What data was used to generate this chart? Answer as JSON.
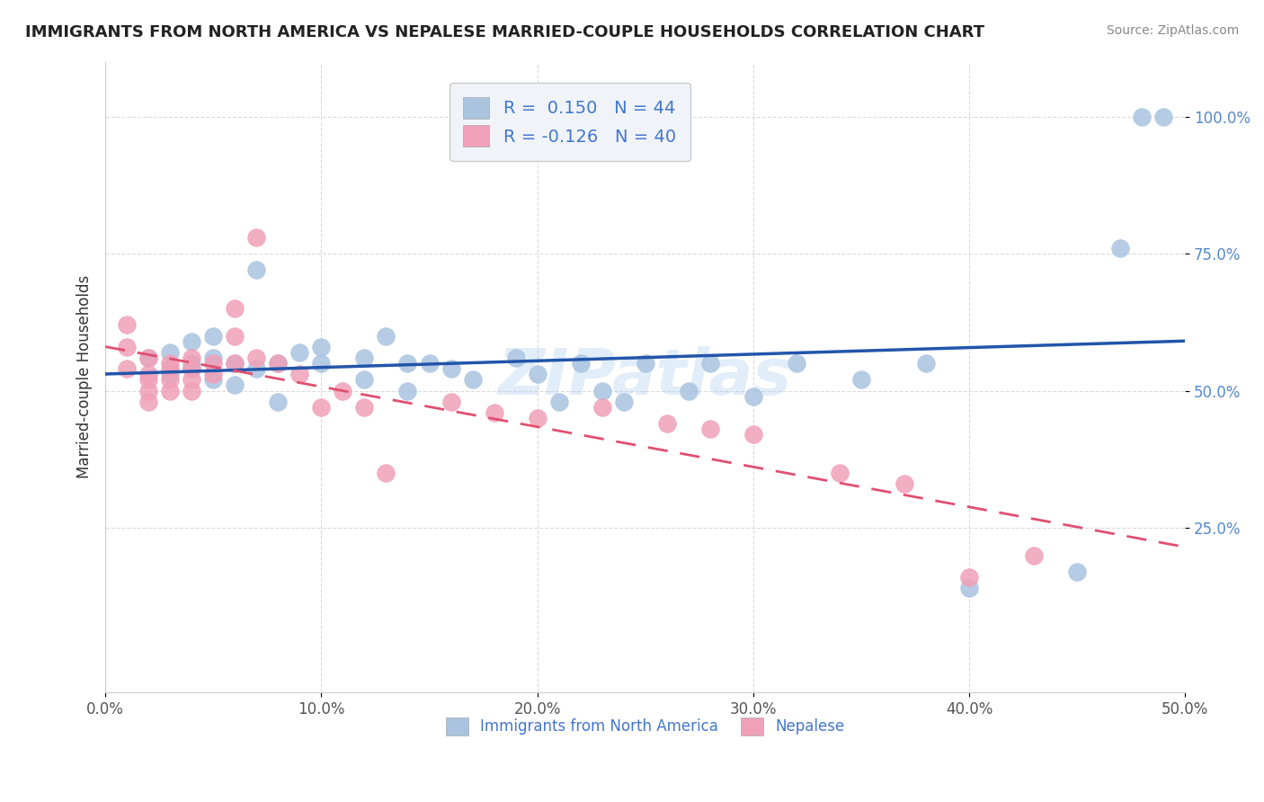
{
  "title": "IMMIGRANTS FROM NORTH AMERICA VS NEPALESE MARRIED-COUPLE HOUSEHOLDS CORRELATION CHART",
  "source": "Source: ZipAtlas.com",
  "ylabel": "Married-couple Households",
  "xlim": [
    0.0,
    0.5
  ],
  "ylim": [
    -0.05,
    1.1
  ],
  "xtick_labels": [
    "0.0%",
    "10.0%",
    "20.0%",
    "30.0%",
    "40.0%",
    "50.0%"
  ],
  "xtick_vals": [
    0.0,
    0.1,
    0.2,
    0.3,
    0.4,
    0.5
  ],
  "ytick_labels": [
    "25.0%",
    "50.0%",
    "75.0%",
    "100.0%"
  ],
  "ytick_vals": [
    0.25,
    0.5,
    0.75,
    1.0
  ],
  "blue_R": 0.15,
  "blue_N": 44,
  "pink_R": -0.126,
  "pink_N": 40,
  "blue_color": "#aac4e0",
  "pink_color": "#f0a0b8",
  "blue_line_color": "#2255aa",
  "pink_line_color": "#e05070",
  "blue_scatter_x": [
    0.02,
    0.03,
    0.03,
    0.04,
    0.04,
    0.04,
    0.05,
    0.05,
    0.05,
    0.06,
    0.06,
    0.07,
    0.07,
    0.08,
    0.08,
    0.09,
    0.1,
    0.1,
    0.12,
    0.12,
    0.13,
    0.14,
    0.14,
    0.15,
    0.16,
    0.17,
    0.19,
    0.2,
    0.21,
    0.22,
    0.23,
    0.24,
    0.25,
    0.27,
    0.28,
    0.3,
    0.32,
    0.35,
    0.38,
    0.4,
    0.45,
    0.47,
    0.48,
    0.49
  ],
  "blue_scatter_y": [
    0.56,
    0.53,
    0.57,
    0.54,
    0.59,
    0.55,
    0.52,
    0.56,
    0.6,
    0.51,
    0.55,
    0.54,
    0.72,
    0.48,
    0.55,
    0.57,
    0.58,
    0.55,
    0.56,
    0.52,
    0.6,
    0.55,
    0.5,
    0.55,
    0.54,
    0.52,
    0.56,
    0.53,
    0.48,
    0.55,
    0.5,
    0.48,
    0.55,
    0.5,
    0.55,
    0.49,
    0.55,
    0.52,
    0.55,
    0.14,
    0.17,
    0.76,
    1.0,
    1.0
  ],
  "pink_scatter_x": [
    0.01,
    0.01,
    0.01,
    0.02,
    0.02,
    0.02,
    0.02,
    0.02,
    0.03,
    0.03,
    0.03,
    0.03,
    0.04,
    0.04,
    0.04,
    0.04,
    0.05,
    0.05,
    0.06,
    0.06,
    0.06,
    0.07,
    0.07,
    0.08,
    0.09,
    0.1,
    0.11,
    0.12,
    0.13,
    0.16,
    0.18,
    0.2,
    0.23,
    0.26,
    0.28,
    0.3,
    0.34,
    0.37,
    0.4,
    0.43
  ],
  "pink_scatter_y": [
    0.62,
    0.58,
    0.54,
    0.56,
    0.53,
    0.52,
    0.5,
    0.48,
    0.55,
    0.54,
    0.52,
    0.5,
    0.56,
    0.54,
    0.52,
    0.5,
    0.55,
    0.53,
    0.65,
    0.6,
    0.55,
    0.56,
    0.78,
    0.55,
    0.53,
    0.47,
    0.5,
    0.47,
    0.35,
    0.48,
    0.46,
    0.45,
    0.47,
    0.44,
    0.43,
    0.42,
    0.35,
    0.33,
    0.16,
    0.2
  ],
  "watermark": "ZIPatlas",
  "legend_box_color": "#f0f4f8",
  "grid_color": "#cccccc",
  "background_color": "#ffffff",
  "legend_text_color": "#4477cc",
  "tick_color_x": "#555555",
  "tick_color_y": "#5588cc"
}
